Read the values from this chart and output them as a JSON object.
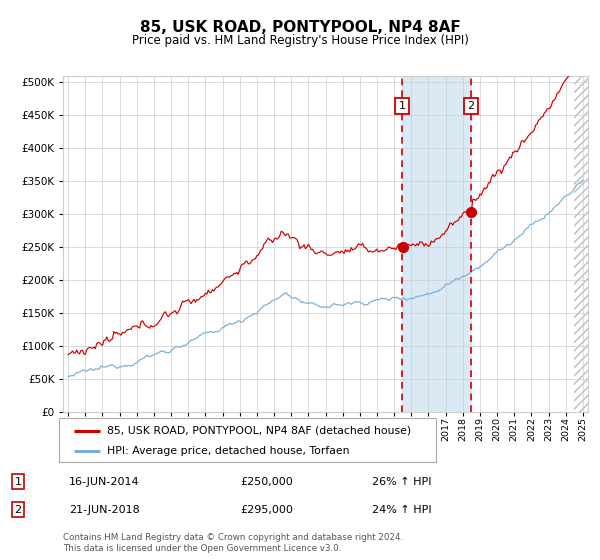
{
  "title": "85, USK ROAD, PONTYPOOL, NP4 8AF",
  "subtitle": "Price paid vs. HM Land Registry's House Price Index (HPI)",
  "legend_red": "85, USK ROAD, PONTYPOOL, NP4 8AF (detached house)",
  "legend_blue": "HPI: Average price, detached house, Torfaen",
  "marker1_label": "1",
  "marker2_label": "2",
  "marker1_date": "16-JUN-2014",
  "marker1_price": "£250,000",
  "marker1_hpi": "26% ↑ HPI",
  "marker2_date": "21-JUN-2018",
  "marker2_price": "£295,000",
  "marker2_hpi": "24% ↑ HPI",
  "footer": "Contains HM Land Registry data © Crown copyright and database right 2024.\nThis data is licensed under the Open Government Licence v3.0.",
  "marker1_x": 2014.46,
  "marker2_x": 2018.47,
  "red_color": "#cc0000",
  "blue_color": "#7aadd4",
  "shade_color": "#daeaf5",
  "marker_dot_color": "#cc0000",
  "grid_color": "#cccccc",
  "bg_color": "#ffffff",
  "hatch_right_color": "#bbbbbb",
  "ylim": [
    0,
    510000
  ],
  "xlim_start": 1994.7,
  "xlim_end": 2025.3
}
